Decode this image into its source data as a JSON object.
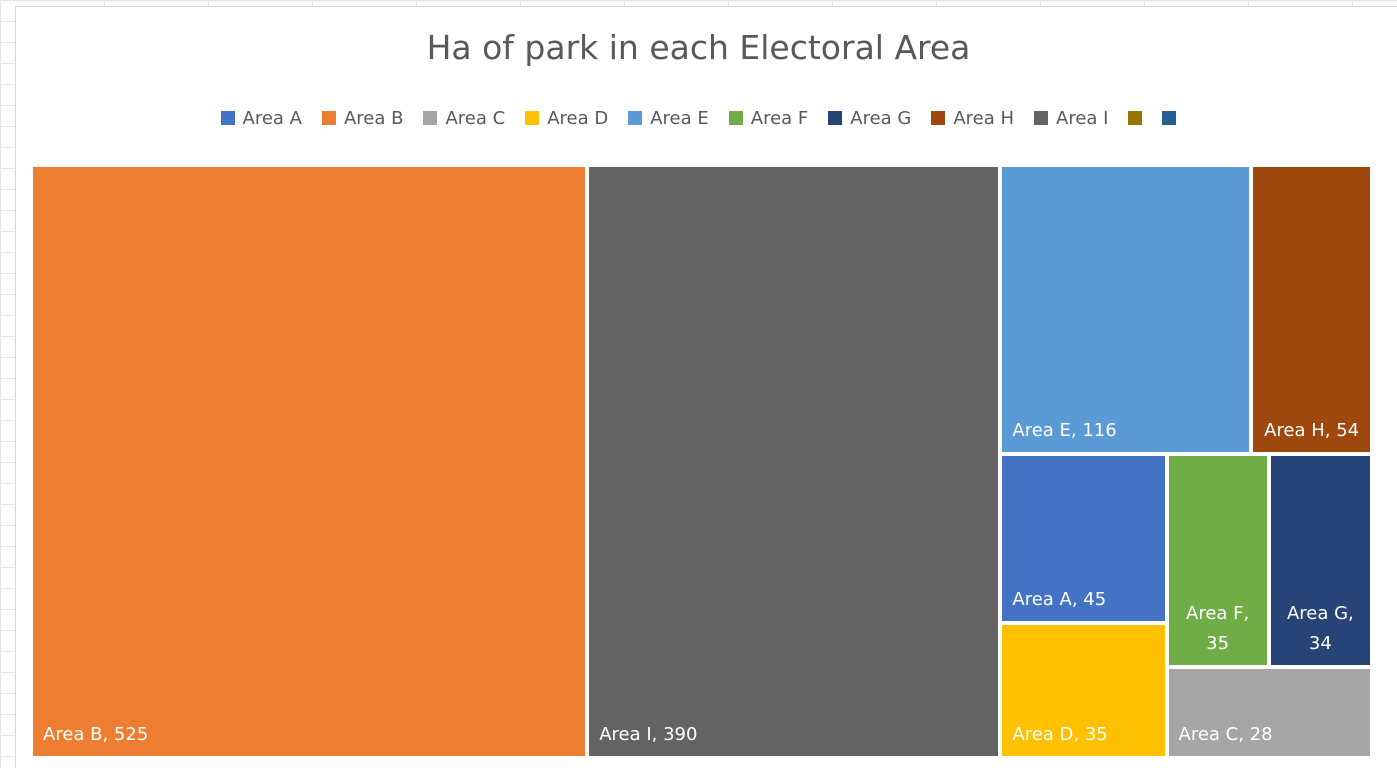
{
  "chart_data": {
    "type": "treemap",
    "title": "Ha of park in each Electoral Area",
    "legend_position": "top",
    "legend": [
      {
        "name": "Area A",
        "color": "#4472C4"
      },
      {
        "name": "Area B",
        "color": "#ED7D31"
      },
      {
        "name": "Area C",
        "color": "#A5A5A5"
      },
      {
        "name": "Area D",
        "color": "#FFC000"
      },
      {
        "name": "Area E",
        "color": "#5B9BD5"
      },
      {
        "name": "Area F",
        "color": "#70AD47"
      },
      {
        "name": "Area G",
        "color": "#264478"
      },
      {
        "name": "Area H",
        "color": "#9E480E"
      },
      {
        "name": "Area I",
        "color": "#636363"
      },
      {
        "name": "",
        "color": "#997300"
      },
      {
        "name": "",
        "color": "#255E91"
      }
    ],
    "items": [
      {
        "name": "Area B",
        "value": 525,
        "color": "#ED7D31",
        "label": "Area B, 525"
      },
      {
        "name": "Area I",
        "value": 390,
        "color": "#636363",
        "label": "Area I, 390"
      },
      {
        "name": "Area E",
        "value": 116,
        "color": "#5B9BD5",
        "label": "Area E, 116"
      },
      {
        "name": "Area H",
        "value": 54,
        "color": "#9E480E",
        "label": "Area H, 54"
      },
      {
        "name": "Area A",
        "value": 45,
        "color": "#4472C4",
        "label": "Area A, 45"
      },
      {
        "name": "Area F",
        "value": 35,
        "color": "#70AD47",
        "label": "Area F, 35"
      },
      {
        "name": "Area G",
        "value": 34,
        "color": "#264478",
        "label": "Area G, 34"
      },
      {
        "name": "Area D",
        "value": 35,
        "color": "#FFC000",
        "label": "Area D, 35"
      },
      {
        "name": "Area C",
        "value": 28,
        "color": "#A5A5A5",
        "label": "Area C, 28"
      }
    ]
  }
}
